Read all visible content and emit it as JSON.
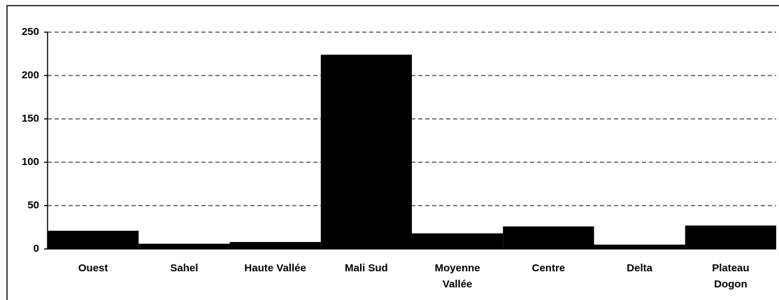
{
  "chart_data": {
    "type": "bar",
    "categories": [
      "Ouest",
      "Sahel",
      "Haute Vallée",
      "Mali Sud",
      "Moyenne Vallée",
      "Centre",
      "Delta",
      "Plateau Dogon"
    ],
    "values": [
      21,
      6,
      8,
      224,
      18,
      26,
      5,
      27
    ],
    "color": "#000000",
    "ylim": [
      0,
      250
    ],
    "yticks": [
      0,
      50,
      100,
      150,
      200,
      250
    ],
    "grid": true
  }
}
